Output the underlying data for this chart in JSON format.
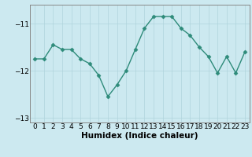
{
  "x": [
    0,
    1,
    2,
    3,
    4,
    5,
    6,
    7,
    8,
    9,
    10,
    11,
    12,
    13,
    14,
    15,
    16,
    17,
    18,
    19,
    20,
    21,
    22,
    23
  ],
  "y": [
    -11.75,
    -11.75,
    -11.45,
    -11.55,
    -11.55,
    -11.75,
    -11.85,
    -12.1,
    -12.55,
    -12.3,
    -12.0,
    -11.55,
    -11.1,
    -10.85,
    -10.85,
    -10.85,
    -11.1,
    -11.25,
    -11.5,
    -11.7,
    -12.05,
    -11.7,
    -12.05,
    -11.6
  ],
  "line_color": "#2e8b7a",
  "marker": "D",
  "marker_size": 2.5,
  "bg_color": "#cce9f0",
  "grid_color": "#b0d4dd",
  "xlabel": "Humidex (Indice chaleur)",
  "ylim": [
    -13.1,
    -10.6
  ],
  "xlim": [
    -0.5,
    23.5
  ],
  "yticks": [
    -13,
    -12,
    -11
  ],
  "xticks": [
    0,
    1,
    2,
    3,
    4,
    5,
    6,
    7,
    8,
    9,
    10,
    11,
    12,
    13,
    14,
    15,
    16,
    17,
    18,
    19,
    20,
    21,
    22,
    23
  ],
  "tick_fontsize": 6.5,
  "xlabel_fontsize": 7.5,
  "line_width": 1.0
}
